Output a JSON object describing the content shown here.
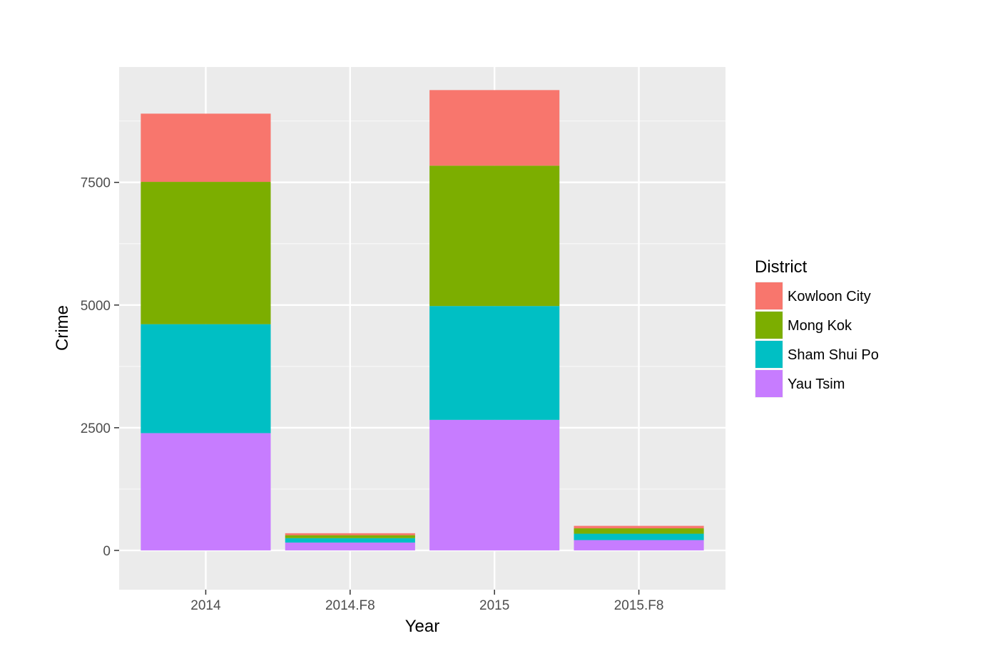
{
  "chart_data": {
    "type": "bar",
    "stacked": true,
    "categories": [
      "2014",
      "2014.F8",
      "2015",
      "2015.F8"
    ],
    "xlabel": "Year",
    "ylabel": "Crime",
    "ylim": [
      -800,
      9850
    ],
    "yticks": [
      0,
      2500,
      5000,
      7500
    ],
    "grid": true,
    "legend": {
      "title": "District",
      "placement": "right"
    },
    "series": [
      {
        "name": "Yau Tsim",
        "color": "#C77CFF",
        "values": [
          2390,
          160,
          2660,
          210
        ]
      },
      {
        "name": "Sham Shui Po",
        "color": "#00BFC4",
        "values": [
          2220,
          90,
          2320,
          130
        ]
      },
      {
        "name": "Mong Kok",
        "color": "#7CAE00",
        "values": [
          2900,
          60,
          2860,
          110
        ]
      },
      {
        "name": "Kowloon City",
        "color": "#F8766D",
        "values": [
          1390,
          40,
          1540,
          50
        ]
      }
    ],
    "legend_order": [
      "Kowloon City",
      "Mong Kok",
      "Sham Shui Po",
      "Yau Tsim"
    ]
  }
}
